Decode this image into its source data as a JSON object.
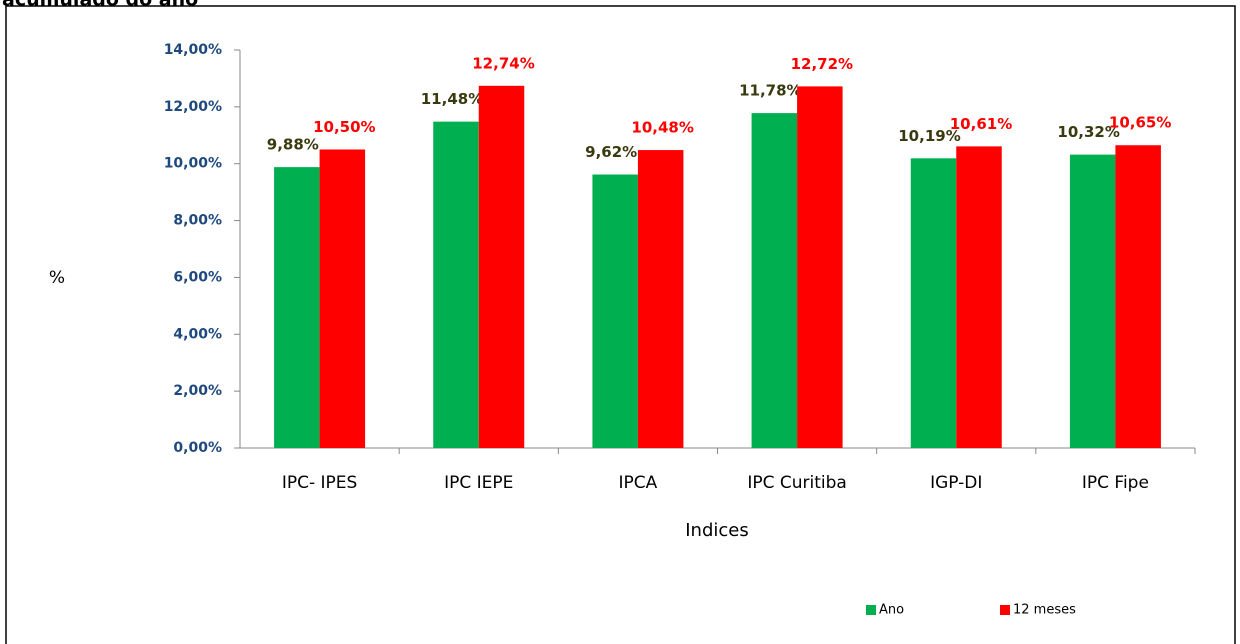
{
  "chart_data": {
    "type": "bar",
    "title": "acumulado do ano",
    "x_label": "Indices",
    "y_label": "%",
    "categories": [
      "IPC- IPES",
      "IPC IEPE",
      "IPCA",
      "IPC Curitiba",
      "IGP-DI",
      "IPC Fipe"
    ],
    "series": [
      {
        "name": "Ano",
        "color": "#00b050",
        "label_color": "#3a3a10",
        "values": [
          9.88,
          11.48,
          9.62,
          11.78,
          10.19,
          10.32
        ],
        "value_labels": [
          "9,88%",
          "11,48%",
          "9,62%",
          "11,78%",
          "10,19%",
          "10,32%"
        ]
      },
      {
        "name": "12 meses",
        "color": "#ff0000",
        "label_color": "#ff0000",
        "values": [
          10.5,
          12.74,
          10.48,
          12.72,
          10.61,
          10.65
        ],
        "value_labels": [
          "10,50%",
          "12,74%",
          "10,48%",
          "12,72%",
          "10,61%",
          "10,65%"
        ]
      }
    ],
    "ylim": [
      0,
      14
    ],
    "yticks": [
      {
        "value": 0,
        "label": "0,00%"
      },
      {
        "value": 2,
        "label": "2,00%"
      },
      {
        "value": 4,
        "label": "4,00%"
      },
      {
        "value": 6,
        "label": "6,00%"
      },
      {
        "value": 8,
        "label": "8,00%"
      },
      {
        "value": 10,
        "label": "10,00%"
      },
      {
        "value": 12,
        "label": "12,00%"
      },
      {
        "value": 14,
        "label": "14,00%"
      }
    ],
    "grid": false,
    "legend": "bottom-right"
  }
}
